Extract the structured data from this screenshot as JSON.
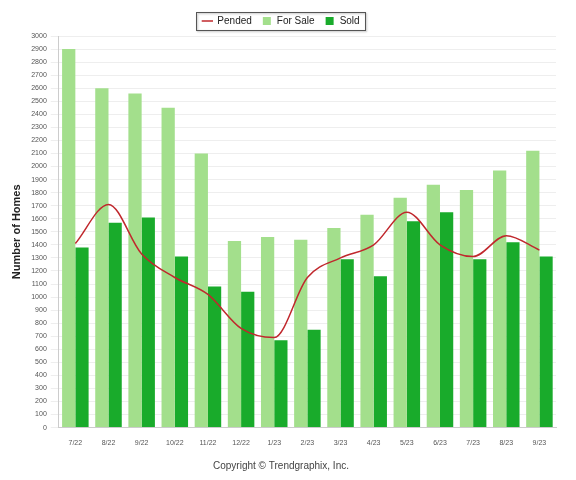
{
  "chart_data": {
    "type": "bar",
    "categories": [
      "7/22",
      "8/22",
      "9/22",
      "10/22",
      "11/22",
      "12/22",
      "1/23",
      "2/23",
      "3/23",
      "4/23",
      "5/23",
      "6/23",
      "7/23",
      "8/23",
      "9/23"
    ],
    "series": [
      {
        "name": "For Sale",
        "type": "bar",
        "color": "#a3df8c",
        "values": [
          2900,
          2600,
          2560,
          2450,
          2100,
          1430,
          1460,
          1440,
          1530,
          1630,
          1760,
          1860,
          1820,
          1970,
          2120
        ]
      },
      {
        "name": "Sold",
        "type": "bar",
        "color": "#19ab2b",
        "values": [
          1380,
          1570,
          1610,
          1310,
          1080,
          1040,
          670,
          750,
          1290,
          1160,
          1580,
          1650,
          1290,
          1420,
          1310
        ]
      },
      {
        "name": "Pended",
        "type": "line",
        "color": "#c0282d",
        "marker": "none",
        "line_style": "smooth",
        "values": [
          1410,
          1710,
          1330,
          1150,
          1020,
          760,
          690,
          1150,
          1300,
          1400,
          1650,
          1400,
          1310,
          1470,
          1360
        ]
      }
    ],
    "y_label": "Number of Homes",
    "annotations": [
      "Copyright © Trendgraphix, Inc."
    ],
    "ylim": [
      0,
      3000
    ],
    "yticks": [
      0,
      100,
      200,
      300,
      400,
      500,
      600,
      700,
      800,
      900,
      1000,
      1100,
      1200,
      1300,
      1400,
      1500,
      1600,
      1700,
      1800,
      1900,
      2000,
      2100,
      2200,
      2300,
      2400,
      2500,
      2600,
      2700,
      2800,
      2900,
      3000
    ],
    "grid": true,
    "legend": "top"
  }
}
